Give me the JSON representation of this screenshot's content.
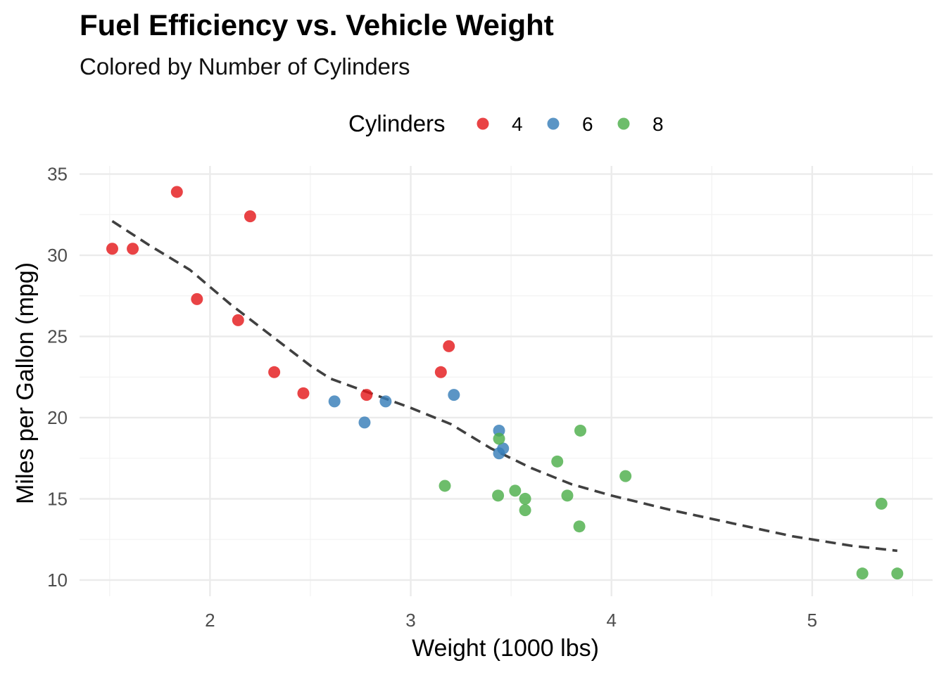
{
  "chart_data": {
    "type": "scatter",
    "title": "Fuel Efficiency vs. Vehicle Weight",
    "subtitle": "Colored by Number of Cylinders",
    "xlabel": "Weight (1000 lbs)",
    "ylabel": "Miles per Gallon (mpg)",
    "xlim": [
      1.35,
      5.6
    ],
    "ylim": [
      9.0,
      35.5
    ],
    "x_ticks": [
      2,
      3,
      4,
      5
    ],
    "y_ticks": [
      10,
      15,
      20,
      25,
      30,
      35
    ],
    "grid": true,
    "legend": {
      "title": "Cylinders",
      "placement": "top",
      "entries": [
        {
          "label": "4",
          "color": "#E41A1C"
        },
        {
          "label": "6",
          "color": "#377EB8"
        },
        {
          "label": "8",
          "color": "#4DAF4A"
        }
      ]
    },
    "series": [
      {
        "name": "4",
        "color": "#E41A1C",
        "points": [
          {
            "x": 1.513,
            "y": 30.4
          },
          {
            "x": 1.615,
            "y": 30.4
          },
          {
            "x": 1.835,
            "y": 33.9
          },
          {
            "x": 1.935,
            "y": 27.3
          },
          {
            "x": 2.14,
            "y": 26.0
          },
          {
            "x": 2.2,
            "y": 32.4
          },
          {
            "x": 2.32,
            "y": 22.8
          },
          {
            "x": 2.465,
            "y": 21.5
          },
          {
            "x": 2.78,
            "y": 21.4
          },
          {
            "x": 3.15,
            "y": 22.8
          },
          {
            "x": 3.19,
            "y": 24.4
          }
        ]
      },
      {
        "name": "6",
        "color": "#377EB8",
        "points": [
          {
            "x": 2.62,
            "y": 21.0
          },
          {
            "x": 2.77,
            "y": 19.7
          },
          {
            "x": 2.875,
            "y": 21.0
          },
          {
            "x": 3.215,
            "y": 21.4
          },
          {
            "x": 3.44,
            "y": 19.2
          },
          {
            "x": 3.44,
            "y": 17.8
          },
          {
            "x": 3.46,
            "y": 18.1
          }
        ]
      },
      {
        "name": "8",
        "color": "#4DAF4A",
        "points": [
          {
            "x": 3.17,
            "y": 15.8
          },
          {
            "x": 3.435,
            "y": 15.2
          },
          {
            "x": 3.44,
            "y": 18.7
          },
          {
            "x": 3.52,
            "y": 15.5
          },
          {
            "x": 3.57,
            "y": 14.3
          },
          {
            "x": 3.57,
            "y": 15.0
          },
          {
            "x": 3.73,
            "y": 17.3
          },
          {
            "x": 3.78,
            "y": 15.2
          },
          {
            "x": 3.84,
            "y": 13.3
          },
          {
            "x": 3.845,
            "y": 19.2
          },
          {
            "x": 4.07,
            "y": 16.4
          },
          {
            "x": 5.25,
            "y": 10.4
          },
          {
            "x": 5.345,
            "y": 14.7
          },
          {
            "x": 5.424,
            "y": 10.4
          }
        ]
      }
    ],
    "trend_line": {
      "style": "dashed",
      "color": "#404040",
      "points": [
        {
          "x": 1.513,
          "y": 32.1
        },
        {
          "x": 1.7,
          "y": 30.6
        },
        {
          "x": 1.9,
          "y": 29.1
        },
        {
          "x": 2.1,
          "y": 27.0
        },
        {
          "x": 2.3,
          "y": 25.1
        },
        {
          "x": 2.5,
          "y": 23.2
        },
        {
          "x": 2.6,
          "y": 22.4
        },
        {
          "x": 2.8,
          "y": 21.5
        },
        {
          "x": 3.0,
          "y": 20.6
        },
        {
          "x": 3.2,
          "y": 19.6
        },
        {
          "x": 3.4,
          "y": 18.1
        },
        {
          "x": 3.6,
          "y": 16.9
        },
        {
          "x": 3.8,
          "y": 15.9
        },
        {
          "x": 4.0,
          "y": 15.2
        },
        {
          "x": 4.3,
          "y": 14.3
        },
        {
          "x": 4.6,
          "y": 13.5
        },
        {
          "x": 4.9,
          "y": 12.7
        },
        {
          "x": 5.2,
          "y": 12.1
        },
        {
          "x": 5.424,
          "y": 11.8
        }
      ]
    }
  }
}
